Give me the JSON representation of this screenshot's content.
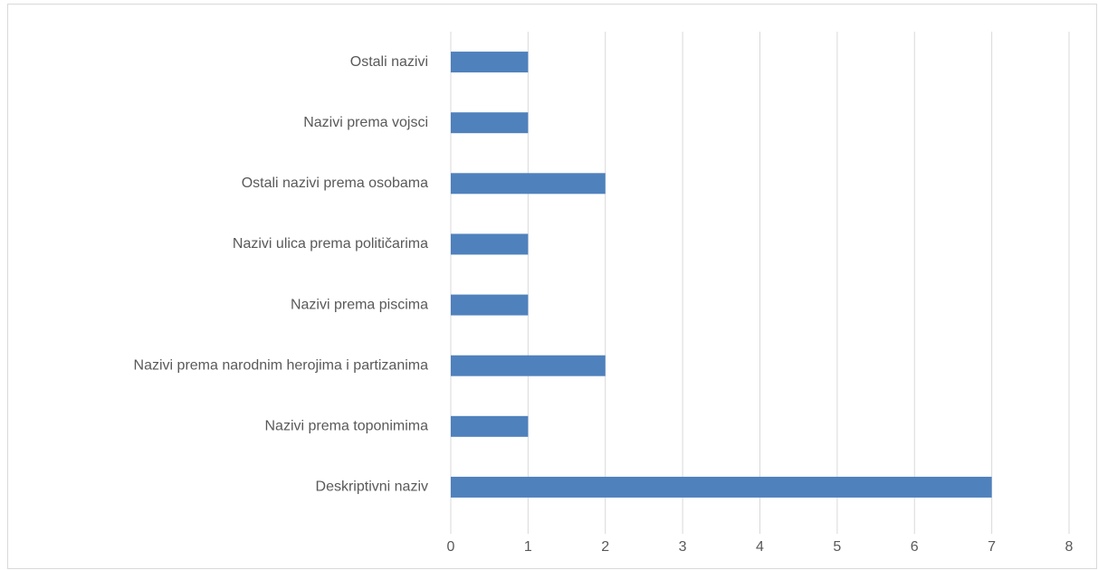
{
  "chart_data": {
    "type": "bar",
    "orientation": "horizontal",
    "categories": [
      "Deskriptivni naziv",
      "Nazivi prema toponimima",
      "Nazivi prema narodnim herojima i partizanima",
      "Nazivi prema piscima",
      "Nazivi ulica prema političarima",
      "Ostali nazivi prema osobama",
      "Nazivi prema vojsci",
      "Ostali nazivi"
    ],
    "values": [
      7,
      1,
      2,
      1,
      1,
      2,
      1,
      1
    ],
    "color": "#4f81bd",
    "xlim": [
      0,
      8
    ],
    "xticks": [
      0,
      1,
      2,
      3,
      4,
      5,
      6,
      7,
      8
    ],
    "grid": true
  }
}
